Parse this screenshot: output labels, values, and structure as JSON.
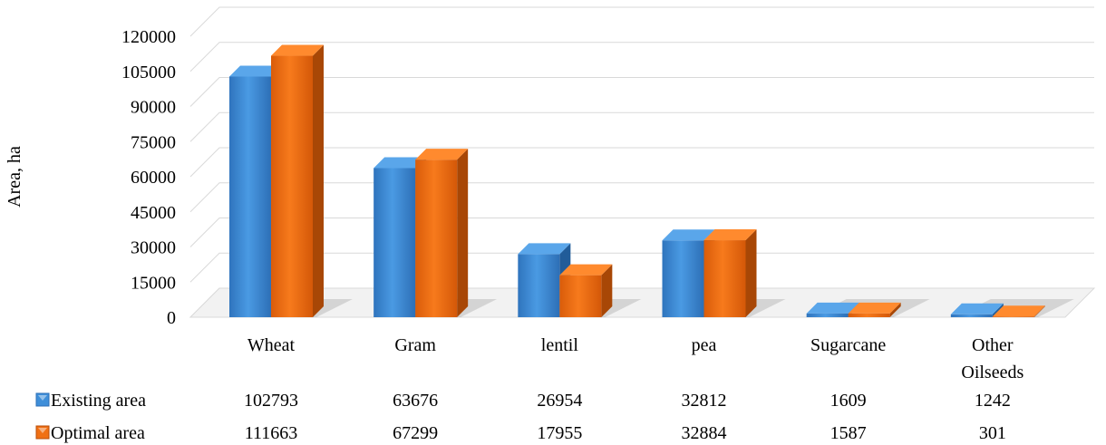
{
  "chart_data": {
    "type": "bar",
    "style": "3d-clustered-column",
    "ylabel": "Area, ha",
    "xlabel": "",
    "title": "",
    "ylim": [
      0,
      120000
    ],
    "yticks": [
      0,
      15000,
      30000,
      45000,
      60000,
      75000,
      90000,
      105000,
      120000
    ],
    "grid": true,
    "categories": [
      [
        "Wheat"
      ],
      [
        "Gram"
      ],
      [
        "lentil"
      ],
      [
        "pea"
      ],
      [
        "Sugarcane"
      ],
      [
        "Other",
        "Oilseeds"
      ]
    ],
    "series": [
      {
        "name": "Existing area",
        "color": "#3f8fd9",
        "values": [
          102793,
          63676,
          26954,
          32812,
          1609,
          1242
        ]
      },
      {
        "name": "Optimal area",
        "color": "#f07014",
        "values": [
          111663,
          67299,
          17955,
          32884,
          1587,
          301
        ]
      }
    ],
    "data_table": true
  }
}
